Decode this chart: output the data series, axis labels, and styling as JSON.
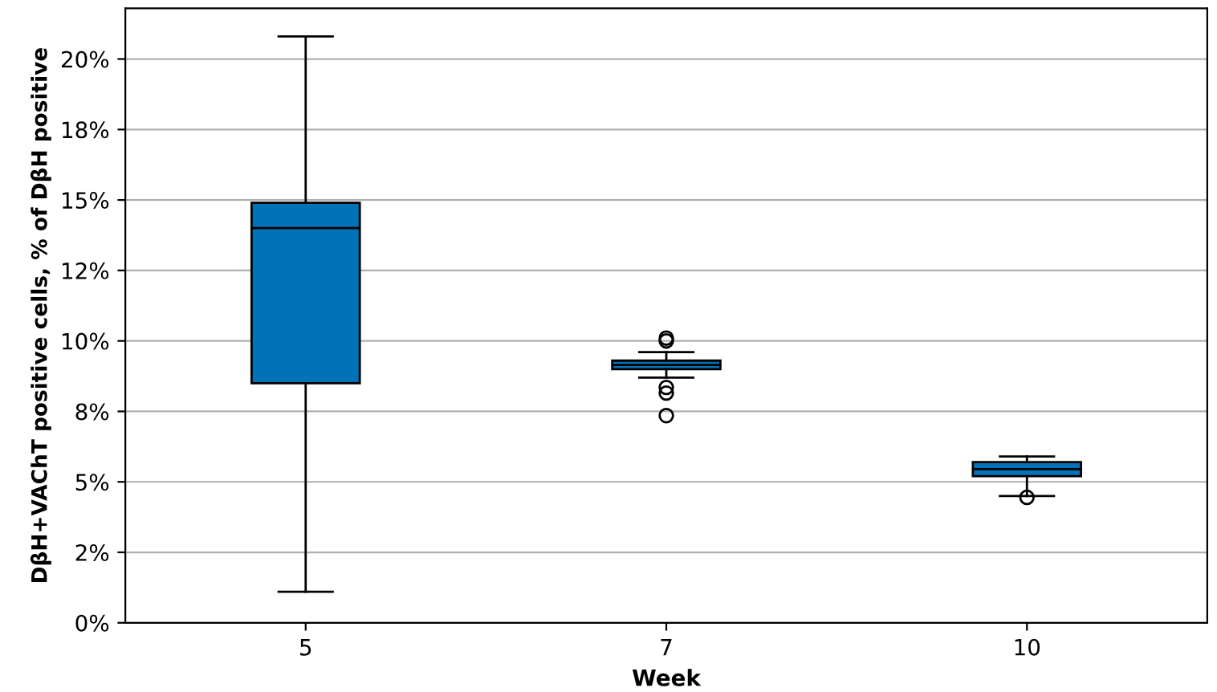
{
  "chart_data": {
    "type": "box",
    "xlabel": "Week",
    "ylabel": "DβH+VAChT positive cells, % of DβH positive",
    "categories": [
      "5",
      "7",
      "10"
    ],
    "boxes": [
      {
        "low": 1.1,
        "q1": 8.5,
        "median": 14.0,
        "q3": 14.9,
        "high": 20.8
      },
      {
        "low": 8.7,
        "q1": 9.0,
        "median": 9.15,
        "q3": 9.3,
        "high": 9.6,
        "outliers": [
          10.1,
          10.0,
          8.35,
          8.15,
          7.35
        ]
      },
      {
        "low": 4.5,
        "q1": 5.2,
        "median": 5.45,
        "q3": 5.7,
        "high": 5.9,
        "outliers": [
          4.45
        ]
      }
    ],
    "color": "#0072b8",
    "ylim": [
      0,
      21.8
    ],
    "yticks": [
      {
        "value": 0,
        "label": "0%"
      },
      {
        "value": 2.5,
        "label": "2%"
      },
      {
        "value": 5,
        "label": "5%"
      },
      {
        "value": 7.5,
        "label": "8%"
      },
      {
        "value": 10,
        "label": "10%"
      },
      {
        "value": 12.5,
        "label": "12%"
      },
      {
        "value": 15,
        "label": "15%"
      },
      {
        "value": 17.5,
        "label": "18%"
      },
      {
        "value": 20,
        "label": "20%"
      }
    ],
    "grid": "y"
  }
}
